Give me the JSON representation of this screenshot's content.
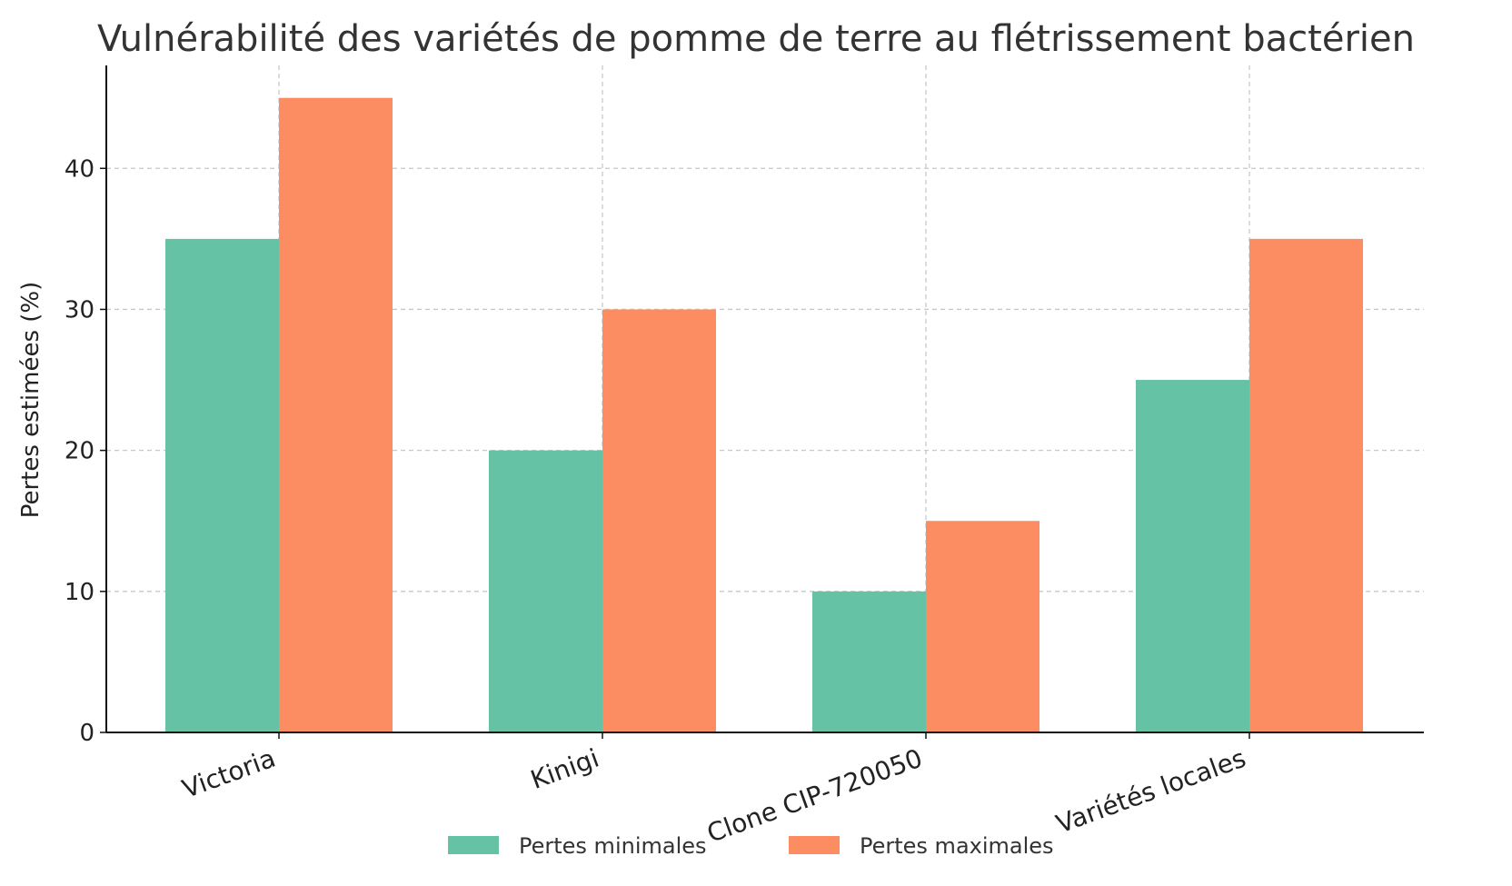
{
  "chart_data": {
    "type": "bar",
    "title": "Vulnérabilité des variétés de pomme de terre au flétrissement bactérien",
    "xlabel": "",
    "ylabel": "Pertes estimées (%)",
    "categories": [
      "Victoria",
      "Kinigi",
      "Clone CIP-720050",
      "Variétés locales"
    ],
    "series": [
      {
        "name": "Pertes minimales",
        "values": [
          35,
          20,
          10,
          25
        ],
        "color": "#66c2a5"
      },
      {
        "name": "Pertes maximales",
        "values": [
          45,
          30,
          15,
          35
        ],
        "color": "#fc8d62"
      }
    ],
    "ylim": [
      0,
      47.3
    ],
    "yticks": [
      0,
      10,
      20,
      30,
      40
    ],
    "grid": true,
    "legend_position": "bottom-center"
  }
}
